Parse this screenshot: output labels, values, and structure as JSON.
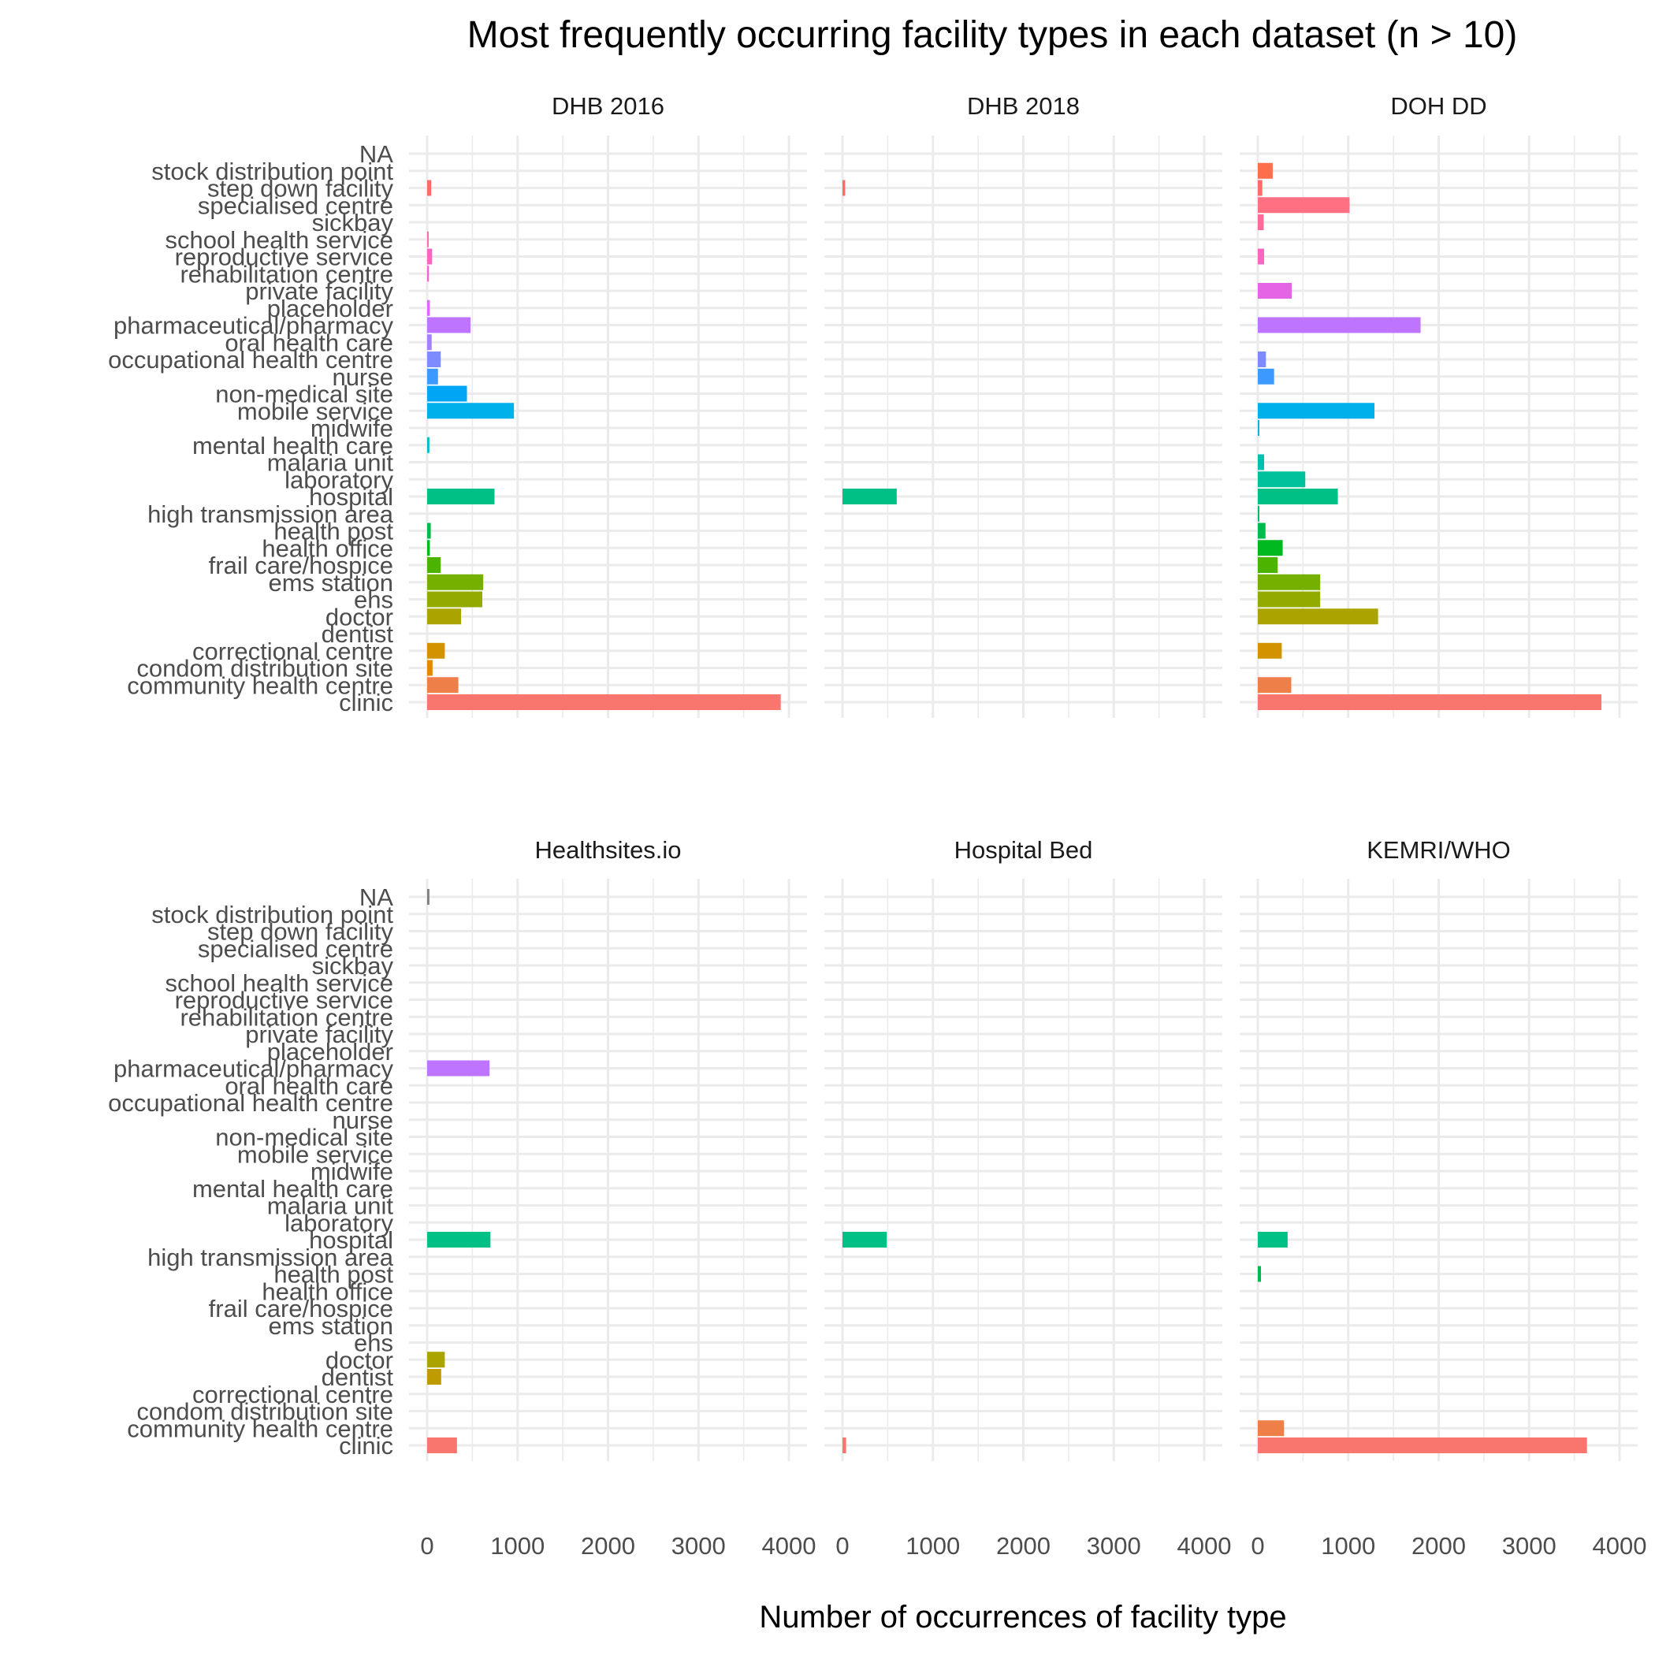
{
  "chart_data": {
    "type": "bar",
    "orientation": "horizontal",
    "title": "Most frequently occurring facility types in each dataset (n > 10)",
    "xlabel": "Number of occurrences of facility type",
    "ylabel": "",
    "xlim": [
      0,
      4000
    ],
    "x_ticks": [
      "0",
      "1000",
      "2000",
      "3000",
      "4000"
    ],
    "grid": true,
    "legend": "none",
    "categories": [
      "clinic",
      "community health centre",
      "condom distribution site",
      "correctional centre",
      "dentist",
      "doctor",
      "ehs",
      "ems station",
      "frail care/hospice",
      "health office",
      "health post",
      "high transmission area",
      "hospital",
      "laboratory",
      "malaria unit",
      "mental health care",
      "midwife",
      "mobile service",
      "non-medical site",
      "nurse",
      "occupational health centre",
      "oral health care",
      "pharmaceutical/pharmacy",
      "placeholder",
      "private facility",
      "rehabilitation centre",
      "reproductive service",
      "school health service",
      "sickbay",
      "specialised centre",
      "step down facility",
      "stock distribution point",
      "NA"
    ],
    "category_colors": [
      "#F8766D",
      "#EF7F49",
      "#E38900",
      "#D39200",
      "#C09B00",
      "#AAA300",
      "#93AA00",
      "#75AF00",
      "#4CB400",
      "#00B81F",
      "#00BB4B",
      "#00BE6A",
      "#00C085",
      "#00C19C",
      "#00C0B2",
      "#00BDC7",
      "#00B8D9",
      "#00B0E9",
      "#00A5F6",
      "#3B99FF",
      "#7D8BFF",
      "#A47FFF",
      "#BF74FF",
      "#D56BF6",
      "#E564E6",
      "#F062D7",
      "#F866C2",
      "#FD6EAC",
      "#FF6A98",
      "#FF7083",
      "#FF6C67",
      "#FF6E4C",
      "#7F7F7F"
    ],
    "panels": [
      {
        "name": "DHB 2016",
        "values": [
          3910,
          345,
          60,
          195,
          0,
          375,
          610,
          620,
          150,
          30,
          40,
          0,
          745,
          0,
          0,
          25,
          0,
          960,
          440,
          120,
          150,
          50,
          480,
          30,
          0,
          20,
          55,
          15,
          0,
          0,
          45,
          0,
          0
        ]
      },
      {
        "name": "DHB 2018",
        "values": [
          0,
          0,
          0,
          0,
          0,
          0,
          0,
          0,
          0,
          0,
          0,
          0,
          600,
          0,
          0,
          0,
          0,
          0,
          0,
          0,
          0,
          0,
          0,
          0,
          0,
          0,
          0,
          0,
          0,
          0,
          30,
          0,
          0
        ]
      },
      {
        "name": "DOH DD",
        "values": [
          3800,
          370,
          0,
          265,
          0,
          1330,
          690,
          690,
          220,
          275,
          85,
          15,
          885,
          525,
          70,
          0,
          15,
          1290,
          0,
          180,
          90,
          0,
          1800,
          0,
          375,
          0,
          70,
          0,
          65,
          1015,
          50,
          165,
          0
        ]
      },
      {
        "name": "Healthsites.io",
        "values": [
          330,
          0,
          0,
          0,
          155,
          195,
          0,
          0,
          0,
          0,
          0,
          0,
          700,
          0,
          0,
          0,
          0,
          0,
          0,
          0,
          0,
          0,
          690,
          0,
          0,
          0,
          0,
          0,
          0,
          0,
          0,
          0,
          25
        ]
      },
      {
        "name": "Hospital Bed",
        "values": [
          40,
          0,
          0,
          0,
          0,
          0,
          0,
          0,
          0,
          0,
          0,
          0,
          490,
          0,
          0,
          0,
          0,
          0,
          0,
          0,
          0,
          0,
          0,
          0,
          0,
          0,
          0,
          0,
          0,
          0,
          0,
          0,
          0
        ]
      },
      {
        "name": "KEMRI/WHO",
        "values": [
          3640,
          290,
          0,
          0,
          0,
          0,
          0,
          0,
          0,
          0,
          35,
          0,
          330,
          0,
          0,
          0,
          0,
          0,
          0,
          0,
          0,
          0,
          0,
          0,
          0,
          0,
          0,
          0,
          0,
          0,
          0,
          0,
          0
        ]
      }
    ]
  }
}
